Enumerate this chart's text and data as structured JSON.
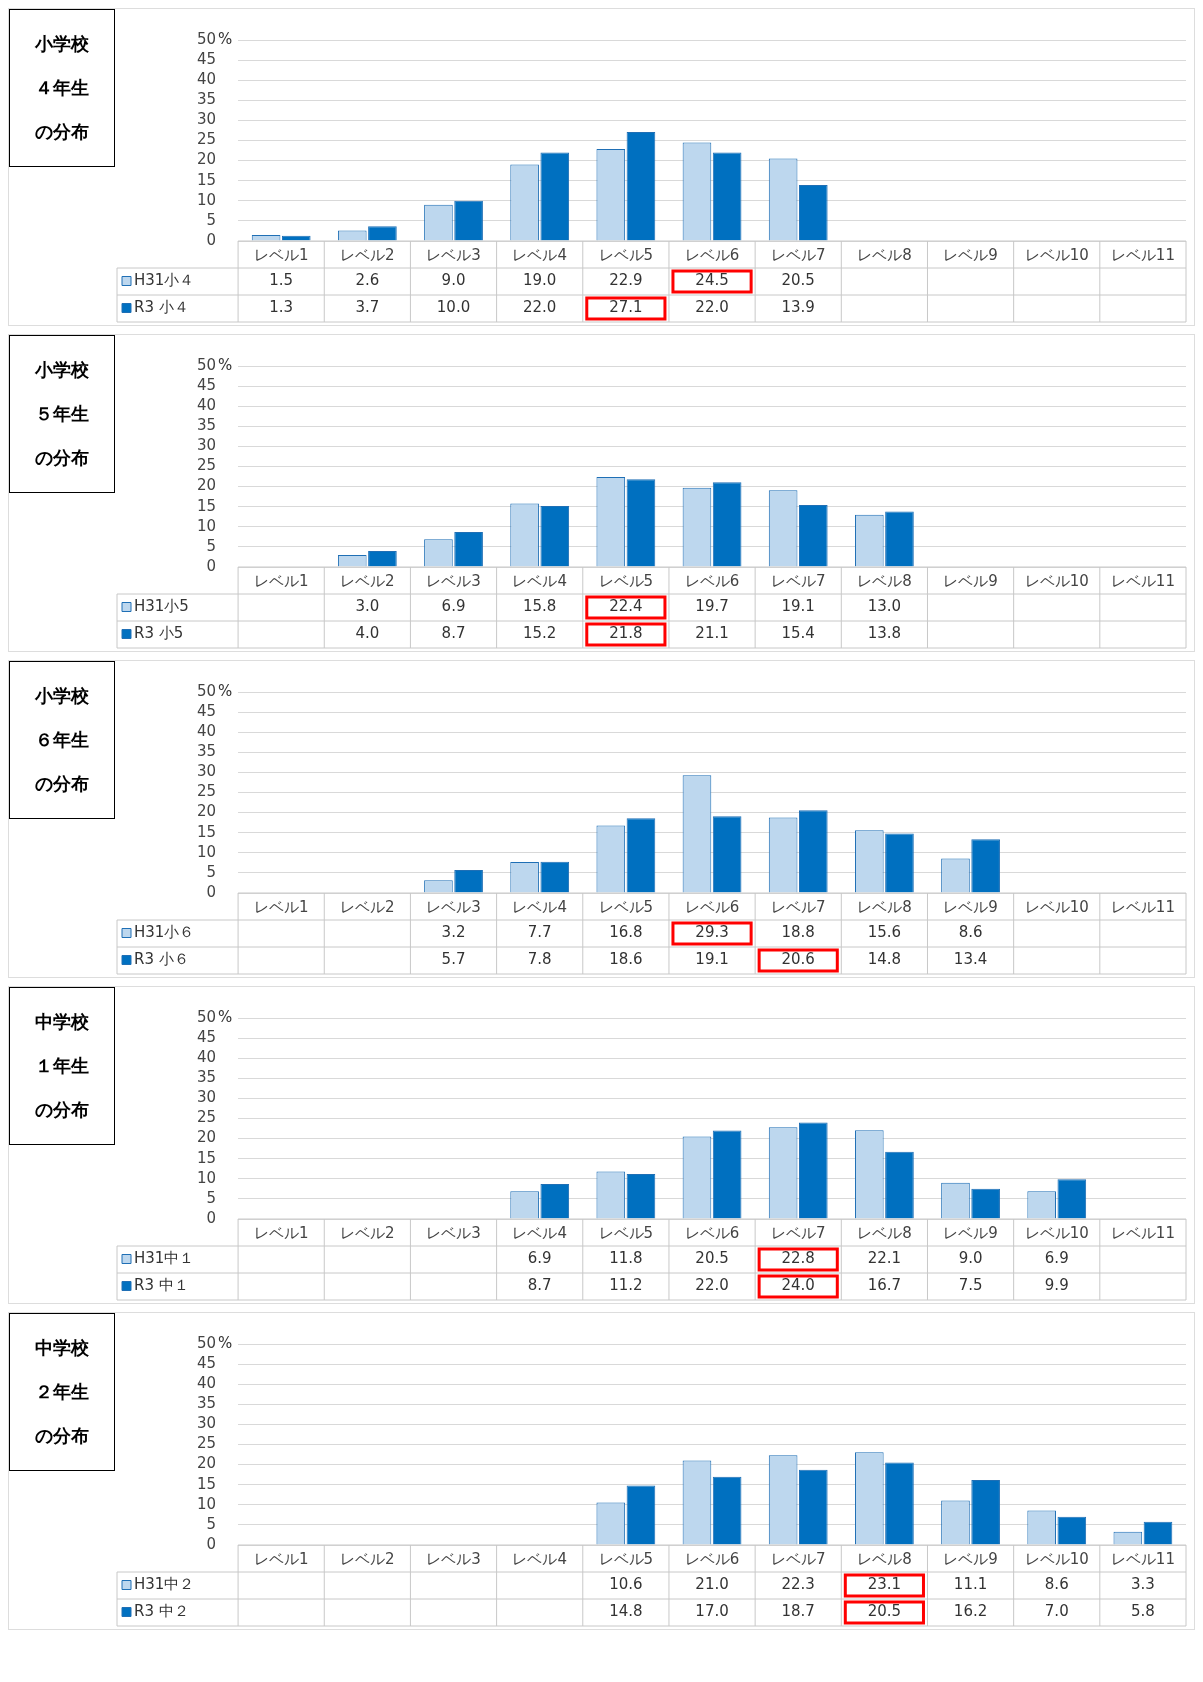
{
  "chart_data": [
    {
      "type": "bar",
      "title": "小学校４年生の分布",
      "legend": "bottom left",
      "ylabel": "%",
      "categories": [
        "レベル1",
        "レベル2",
        "レベル3",
        "レベル4",
        "レベル5",
        "レベル6",
        "レベル7",
        "レベル8",
        "レベル9",
        "レベル10",
        "レベル11"
      ],
      "ylim": [
        0,
        50
      ],
      "yticks": [
        0,
        5,
        10,
        15,
        20,
        25,
        30,
        35,
        40,
        45,
        50
      ],
      "grid": "y",
      "series": [
        {
          "name": "H31小４",
          "color": "#bdd7ee",
          "values": [
            1.5,
            2.6,
            9.0,
            19.0,
            22.9,
            24.5,
            20.5,
            null,
            null,
            null,
            null
          ],
          "value_labels": [
            "1.5",
            "2.6",
            "9.0",
            "19.0",
            "22.9",
            "24.5",
            "20.5",
            null,
            null,
            null,
            null
          ]
        },
        {
          "name": "R3 小４",
          "color": "#0070c0",
          "values": [
            1.3,
            3.7,
            10.0,
            22.0,
            27.1,
            22.0,
            13.9,
            null,
            null,
            null,
            null
          ],
          "value_labels": [
            "1.3",
            "3.7",
            "10.0",
            "22.0",
            "27.1",
            "22.0",
            "13.9",
            null,
            null,
            null,
            null
          ]
        }
      ]
    },
    {
      "type": "bar",
      "title": "小学校５年生の分布",
      "legend": "bottom left",
      "ylabel": "%",
      "categories": [
        "レベル1",
        "レベル2",
        "レベル3",
        "レベル4",
        "レベル5",
        "レベル6",
        "レベル7",
        "レベル8",
        "レベル9",
        "レベル10",
        "レベル11"
      ],
      "ylim": [
        0,
        50
      ],
      "yticks": [
        0,
        5,
        10,
        15,
        20,
        25,
        30,
        35,
        40,
        45,
        50
      ],
      "grid": "y",
      "series": [
        {
          "name": "H31小5",
          "color": "#bdd7ee",
          "values": [
            null,
            3.0,
            6.9,
            15.8,
            22.4,
            19.7,
            19.1,
            13.0,
            null,
            null,
            null
          ],
          "value_labels": [
            null,
            "3.0",
            "6.9",
            "15.8",
            "22.4",
            "19.7",
            "19.1",
            "13.0",
            null,
            null,
            null
          ]
        },
        {
          "name": "R3 小5",
          "color": "#0070c0",
          "values": [
            null,
            4.0,
            8.7,
            15.2,
            21.8,
            21.1,
            15.4,
            13.8,
            null,
            null,
            null
          ],
          "value_labels": [
            null,
            "4.0",
            "8.7",
            "15.2",
            "21.8",
            "21.1",
            "15.4",
            "13.8",
            null,
            null,
            null
          ]
        }
      ]
    },
    {
      "type": "bar",
      "title": "小学校６年生の分布",
      "legend": "bottom left",
      "ylabel": "%",
      "categories": [
        "レベル1",
        "レベル2",
        "レベル3",
        "レベル4",
        "レベル5",
        "レベル6",
        "レベル7",
        "レベル8",
        "レベル9",
        "レベル10",
        "レベル11"
      ],
      "ylim": [
        0,
        50
      ],
      "yticks": [
        0,
        5,
        10,
        15,
        20,
        25,
        30,
        35,
        40,
        45,
        50
      ],
      "grid": "y",
      "series": [
        {
          "name": "H31小６",
          "color": "#bdd7ee",
          "values": [
            null,
            null,
            3.2,
            7.7,
            16.8,
            29.3,
            18.8,
            15.6,
            8.6,
            null,
            null
          ],
          "value_labels": [
            null,
            null,
            "3.2",
            "7.7",
            "16.8",
            "29.3",
            "18.8",
            "15.6",
            "8.6",
            null,
            null
          ]
        },
        {
          "name": "R3 小６",
          "color": "#0070c0",
          "values": [
            null,
            null,
            5.7,
            7.8,
            18.6,
            19.1,
            20.6,
            14.8,
            13.4,
            null,
            null
          ],
          "value_labels": [
            null,
            null,
            "5.7",
            "7.8",
            "18.6",
            "19.1",
            "20.6",
            "14.8",
            "13.4",
            null,
            null
          ]
        }
      ]
    },
    {
      "type": "bar",
      "title": "中学校１年生の分布",
      "legend": "bottom left",
      "ylabel": "%",
      "categories": [
        "レベル1",
        "レベル2",
        "レベル3",
        "レベル4",
        "レベル5",
        "レベル6",
        "レベル7",
        "レベル8",
        "レベル9",
        "レベル10",
        "レベル11"
      ],
      "ylim": [
        0,
        50
      ],
      "yticks": [
        0,
        5,
        10,
        15,
        20,
        25,
        30,
        35,
        40,
        45,
        50
      ],
      "grid": "y",
      "series": [
        {
          "name": "H31中１",
          "color": "#bdd7ee",
          "values": [
            null,
            null,
            null,
            6.9,
            11.8,
            20.5,
            22.8,
            22.1,
            9.0,
            6.9,
            null
          ],
          "value_labels": [
            null,
            null,
            null,
            "6.9",
            "11.8",
            "20.5",
            "22.8",
            "22.1",
            "9.0",
            "6.9",
            null
          ]
        },
        {
          "name": "R3 中１",
          "color": "#0070c0",
          "values": [
            null,
            null,
            null,
            8.7,
            11.2,
            22.0,
            24.0,
            16.7,
            7.5,
            9.9,
            null
          ],
          "value_labels": [
            null,
            null,
            null,
            "8.7",
            "11.2",
            "22.0",
            "24.0",
            "16.7",
            "7.5",
            "9.9",
            null
          ]
        }
      ]
    },
    {
      "type": "bar",
      "title": "中学校２年生の分布",
      "legend": "bottom left",
      "ylabel": "%",
      "categories": [
        "レベル1",
        "レベル2",
        "レベル3",
        "レベル4",
        "レベル5",
        "レベル6",
        "レベル7",
        "レベル8",
        "レベル9",
        "レベル10",
        "レベル11"
      ],
      "ylim": [
        0,
        50
      ],
      "yticks": [
        0,
        5,
        10,
        15,
        20,
        25,
        30,
        35,
        40,
        45,
        50
      ],
      "grid": "y",
      "series": [
        {
          "name": "H31中２",
          "color": "#bdd7ee",
          "values": [
            null,
            null,
            null,
            null,
            10.6,
            21.0,
            22.3,
            23.1,
            11.1,
            8.6,
            3.3
          ],
          "value_labels": [
            null,
            null,
            null,
            null,
            "10.6",
            "21.0",
            "22.3",
            "23.1",
            "11.1",
            "8.6",
            "3.3"
          ]
        },
        {
          "name": "R3 中２",
          "color": "#0070c0",
          "values": [
            null,
            null,
            null,
            null,
            14.8,
            17.0,
            18.7,
            20.5,
            16.2,
            7.0,
            5.8
          ],
          "value_labels": [
            null,
            null,
            null,
            null,
            "14.8",
            "17.0",
            "18.7",
            "20.5",
            "16.2",
            "7.0",
            "5.8"
          ]
        }
      ]
    }
  ]
}
